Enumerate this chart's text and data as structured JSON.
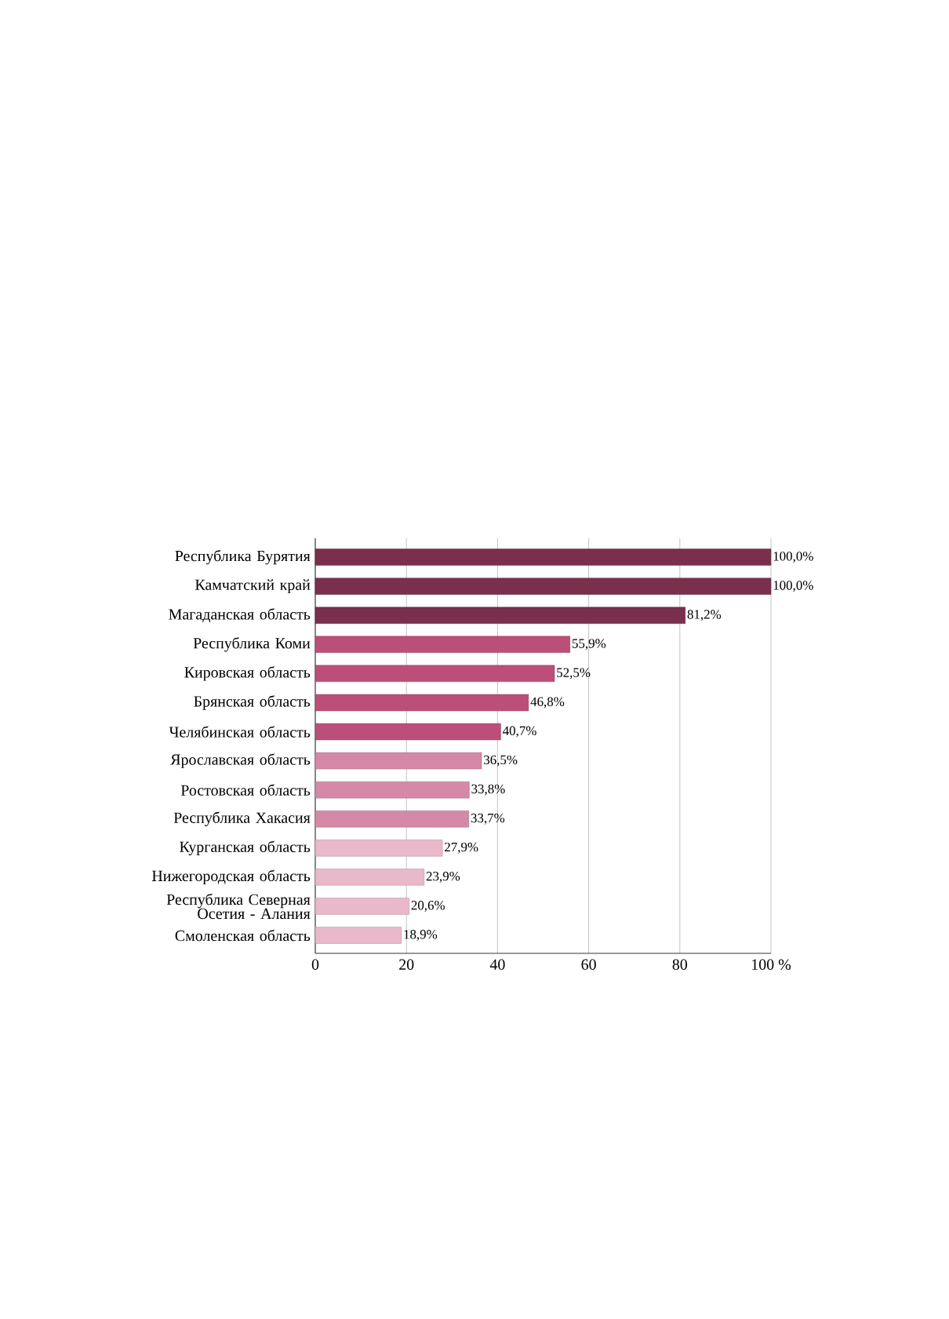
{
  "chart_data": {
    "type": "bar",
    "orientation": "horizontal",
    "categories": [
      "Республика Бурятия",
      "Камчатский край",
      "Магаданская область",
      "Республика Коми",
      "Кировская область",
      "Брянская область",
      "Челябинская область",
      "Ярославская область",
      "Ростовская область",
      "Республика Хакасия",
      "Курганская область",
      "Нижегородская область",
      "Республика Северная Осетия - Алания",
      "Смоленская область"
    ],
    "values": [
      100.0,
      100.0,
      81.2,
      55.9,
      52.5,
      46.8,
      40.7,
      36.5,
      33.8,
      33.7,
      27.9,
      23.9,
      20.6,
      18.9
    ],
    "value_labels": [
      "100,0%",
      "100,0%",
      "81,2%",
      "55,9%",
      "52,5%",
      "46,8%",
      "40,7%",
      "36,5%",
      "33,8%",
      "33,7%",
      "27,9%",
      "23,9%",
      "20,6%",
      "18,9%"
    ],
    "colors": [
      "#7a2f4c",
      "#7a2f4c",
      "#7a2f4c",
      "#bb4f7a",
      "#bb4f7a",
      "#bb4f7a",
      "#bb4f7a",
      "#d48aa6",
      "#d48aa6",
      "#d48aa6",
      "#e9b8cb",
      "#e9b8cb",
      "#e9b8cb",
      "#e9b8cb"
    ],
    "xlim": [
      0,
      100
    ],
    "xticks": [
      0,
      20,
      40,
      60,
      80,
      {
        "value": 100,
        "label": "100 %"
      }
    ],
    "grid": "x"
  }
}
